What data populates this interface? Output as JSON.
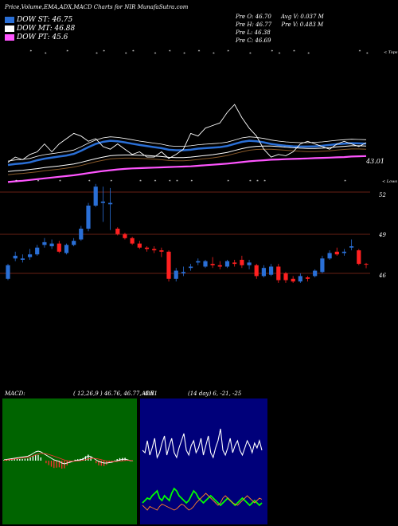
{
  "header": {
    "title": "Price,Volume,EMA,ADX,MACD Charts for NIR MunafaSutra.com"
  },
  "legend": [
    {
      "label": "DOW ST: 46.75",
      "color": "#2a6fd6"
    },
    {
      "label": "DOW MT: 46.88",
      "color": "#ffffff"
    },
    {
      "label": "DOW PT: 45.6",
      "color": "#ff55ff"
    }
  ],
  "ohlc": {
    "row1": [
      "Pre O: 46.70",
      "Avg V: 0.037 M"
    ],
    "row2": [
      "Pre H: 46.77",
      "Pre V: 0.483 M"
    ],
    "row3": [
      "Pre L: 46.38"
    ],
    "row4": [
      "Pre C: 46.69"
    ]
  },
  "panel_labels": {
    "tops": "< Tops",
    "lows": "< Lows",
    "ema_value": "43.01",
    "macd": "MACD:",
    "macd_params": "( 12,26,9 ) 46.76, 46.77, -0.01",
    "adx": "ADX",
    "adx_params": "(14 day) 6, -21, -25"
  },
  "colors": {
    "ema_short": "#2a6fd6",
    "ema_mid": "#ffffff",
    "ema_long": "#ff55ff",
    "up_candle": "#2a6fd6",
    "down_candle": "#ff2020",
    "hline": "#8b2a1a",
    "macd_bg": "#006400",
    "adx_bg": "#00007a"
  },
  "chart_data": {
    "type": "line",
    "price_levels": [
      "52",
      "49",
      "46"
    ],
    "ema_value_label": "43.01",
    "candles": [
      {
        "o": 45.6,
        "c": 46.6,
        "h": 46.7,
        "l": 45.5
      },
      {
        "o": 47.1,
        "c": 47.3,
        "h": 47.6,
        "l": 46.9
      },
      {
        "o": 47.0,
        "c": 47.1,
        "h": 47.4,
        "l": 46.8
      },
      {
        "o": 47.2,
        "c": 47.4,
        "h": 47.8,
        "l": 47.0
      },
      {
        "o": 47.4,
        "c": 47.9,
        "h": 48.1,
        "l": 47.3
      },
      {
        "o": 48.1,
        "c": 48.3,
        "h": 48.6,
        "l": 47.9
      },
      {
        "o": 48.0,
        "c": 48.2,
        "h": 48.5,
        "l": 47.8
      },
      {
        "o": 48.2,
        "c": 47.6,
        "h": 48.4,
        "l": 47.5
      },
      {
        "o": 47.5,
        "c": 48.1,
        "h": 48.2,
        "l": 47.4
      },
      {
        "o": 48.1,
        "c": 48.4,
        "h": 48.6,
        "l": 48.0
      },
      {
        "o": 48.5,
        "c": 49.3,
        "h": 49.5,
        "l": 48.4
      },
      {
        "o": 49.3,
        "c": 51.0,
        "h": 51.2,
        "l": 49.1
      },
      {
        "o": 51.0,
        "c": 52.4,
        "h": 52.6,
        "l": 50.9
      },
      {
        "o": 51.2,
        "c": 51.3,
        "h": 52.4,
        "l": 49.8
      },
      {
        "o": 51.1,
        "c": 51.2,
        "h": 52.3,
        "l": 49.2
      },
      {
        "o": 49.3,
        "c": 48.9,
        "h": 49.4,
        "l": 48.8
      },
      {
        "o": 48.9,
        "c": 48.6,
        "h": 49.0,
        "l": 48.5
      },
      {
        "o": 48.6,
        "c": 48.2,
        "h": 48.7,
        "l": 48.1
      },
      {
        "o": 48.2,
        "c": 47.9,
        "h": 48.4,
        "l": 47.8
      },
      {
        "o": 47.9,
        "c": 47.8,
        "h": 48.0,
        "l": 47.6
      },
      {
        "o": 47.8,
        "c": 47.7,
        "h": 48.0,
        "l": 47.5
      },
      {
        "o": 47.7,
        "c": 47.6,
        "h": 47.9,
        "l": 47.2
      },
      {
        "o": 47.6,
        "c": 45.6,
        "h": 47.7,
        "l": 45.4
      },
      {
        "o": 45.6,
        "c": 46.2,
        "h": 46.4,
        "l": 45.4
      },
      {
        "o": 46.0,
        "c": 46.1,
        "h": 46.5,
        "l": 45.8
      },
      {
        "o": 46.4,
        "c": 46.5,
        "h": 46.7,
        "l": 46.2
      },
      {
        "o": 46.8,
        "c": 46.9,
        "h": 47.1,
        "l": 46.6
      },
      {
        "o": 46.5,
        "c": 46.9,
        "h": 47.0,
        "l": 46.4
      },
      {
        "o": 46.7,
        "c": 46.6,
        "h": 47.2,
        "l": 46.4
      },
      {
        "o": 46.6,
        "c": 46.5,
        "h": 46.9,
        "l": 46.3
      },
      {
        "o": 46.5,
        "c": 46.9,
        "h": 47.0,
        "l": 46.4
      },
      {
        "o": 46.8,
        "c": 46.7,
        "h": 47.0,
        "l": 46.5
      },
      {
        "o": 47.0,
        "c": 46.6,
        "h": 47.3,
        "l": 46.4
      },
      {
        "o": 46.6,
        "c": 46.8,
        "h": 47.0,
        "l": 46.3
      },
      {
        "o": 46.6,
        "c": 45.8,
        "h": 46.7,
        "l": 45.6
      },
      {
        "o": 45.8,
        "c": 46.4,
        "h": 46.6,
        "l": 45.7
      },
      {
        "o": 45.9,
        "c": 46.5,
        "h": 46.7,
        "l": 45.8
      },
      {
        "o": 46.5,
        "c": 45.5,
        "h": 46.7,
        "l": 45.3
      },
      {
        "o": 46.0,
        "c": 45.5,
        "h": 46.1,
        "l": 45.3
      },
      {
        "o": 45.6,
        "c": 45.4,
        "h": 45.8,
        "l": 45.3
      },
      {
        "o": 45.4,
        "c": 45.8,
        "h": 46.0,
        "l": 45.3
      },
      {
        "o": 45.7,
        "c": 45.6,
        "h": 45.8,
        "l": 45.4
      },
      {
        "o": 45.8,
        "c": 46.2,
        "h": 46.3,
        "l": 45.7
      },
      {
        "o": 46.1,
        "c": 47.1,
        "h": 47.3,
        "l": 46.0
      },
      {
        "o": 47.1,
        "c": 47.5,
        "h": 47.7,
        "l": 47.0
      },
      {
        "o": 47.6,
        "c": 47.4,
        "h": 47.9,
        "l": 47.3
      },
      {
        "o": 47.5,
        "c": 47.6,
        "h": 47.8,
        "l": 47.3
      },
      {
        "o": 47.9,
        "c": 48.0,
        "h": 48.5,
        "l": 47.7
      },
      {
        "o": 47.7,
        "c": 46.7,
        "h": 47.8,
        "l": 46.6
      },
      {
        "o": 46.7,
        "c": 46.69,
        "h": 46.77,
        "l": 46.38
      }
    ],
    "ema_short": [
      30.0,
      30.4,
      30.6,
      31.0,
      31.8,
      32.4,
      32.8,
      33.2,
      33.6,
      34.2,
      35.4,
      36.8,
      38.0,
      38.8,
      39.2,
      39.0,
      38.6,
      38.1,
      37.6,
      37.2,
      36.8,
      36.4,
      35.8,
      35.6,
      35.6,
      35.8,
      36.2,
      36.4,
      36.6,
      36.8,
      37.2,
      38.0,
      38.8,
      39.2,
      39.0,
      38.6,
      38.0,
      37.6,
      37.3,
      37.1,
      37.0,
      37.0,
      37.1,
      37.3,
      37.6,
      37.9,
      38.1,
      38.3,
      38.2,
      38.1
    ],
    "ema_mid": [
      27.5,
      27.8,
      28.0,
      28.3,
      28.6,
      29.0,
      29.3,
      29.6,
      30.0,
      30.4,
      31.0,
      31.7,
      32.4,
      33.0,
      33.5,
      33.7,
      33.8,
      33.8,
      33.7,
      33.6,
      33.4,
      33.2,
      32.9,
      32.8,
      32.8,
      33.0,
      33.3,
      33.6,
      33.9,
      34.3,
      34.8,
      35.5,
      36.2,
      36.8,
      37.1,
      37.2,
      37.2,
      37.0,
      36.8,
      36.6,
      36.4,
      36.3,
      36.3,
      36.4,
      36.6,
      36.9,
      37.1,
      37.3,
      37.3,
      37.2
    ],
    "ema_long": [
      23.5,
      23.8,
      24.0,
      24.3,
      24.6,
      24.9,
      25.2,
      25.5,
      25.8,
      26.1,
      26.5,
      26.9,
      27.3,
      27.7,
      28.0,
      28.3,
      28.5,
      28.7,
      28.8,
      28.9,
      29.0,
      29.1,
      29.2,
      29.3,
      29.4,
      29.5,
      29.7,
      29.9,
      30.1,
      30.3,
      30.5,
      30.8,
      31.1,
      31.4,
      31.6,
      31.8,
      32.0,
      32.1,
      32.2,
      32.3,
      32.4,
      32.5,
      32.6,
      32.7,
      32.8,
      32.9,
      33.0,
      33.2,
      33.3,
      33.4
    ],
    "price_line": [
      31.0,
      33.0,
      32.0,
      34.0,
      35.0,
      38.0,
      35.0,
      38.0,
      40.0,
      42.0,
      41.0,
      39.0,
      40.0,
      37.0,
      36.0,
      38.0,
      36.0,
      34.0,
      35.0,
      33.0,
      33.0,
      35.0,
      32.5,
      34.0,
      36.0,
      42.0,
      41.0,
      44.0,
      45.0,
      46.0,
      50.0,
      53.0,
      48.0,
      44.0,
      41.0,
      36.0,
      33.0,
      34.0,
      33.5,
      35.0,
      38.0,
      39.0,
      38.0,
      37.0,
      36.0,
      38.0,
      39.0,
      38.0,
      37.0,
      38.5
    ],
    "macd": {
      "macd_line": [
        0.1,
        0.15,
        0.2,
        0.25,
        0.3,
        0.35,
        0.4,
        0.45,
        0.5,
        0.55,
        0.7,
        0.9,
        1.1,
        1.2,
        1.1,
        0.9,
        0.7,
        0.5,
        0.3,
        0.1,
        0.0,
        -0.1,
        -0.3,
        -0.4,
        -0.3,
        -0.2,
        -0.1,
        0.0,
        0.05,
        0.1,
        0.2,
        0.4,
        0.6,
        0.5,
        0.3,
        0.1,
        -0.1,
        -0.2,
        -0.3,
        -0.3,
        -0.25,
        -0.2,
        -0.1,
        0.0,
        0.1,
        0.15,
        0.2,
        0.1,
        0.0,
        -0.01
      ],
      "signal_line": [
        0.05,
        0.08,
        0.12,
        0.16,
        0.2,
        0.25,
        0.3,
        0.34,
        0.38,
        0.42,
        0.5,
        0.6,
        0.72,
        0.84,
        0.9,
        0.9,
        0.86,
        0.78,
        0.68,
        0.56,
        0.44,
        0.32,
        0.2,
        0.08,
        0.0,
        -0.05,
        -0.07,
        -0.06,
        -0.04,
        -0.01,
        0.04,
        0.12,
        0.22,
        0.28,
        0.3,
        0.26,
        0.2,
        0.12,
        0.04,
        -0.04,
        -0.1,
        -0.12,
        -0.12,
        -0.1,
        -0.06,
        -0.02,
        0.02,
        0.04,
        0.03,
        0.0
      ]
    },
    "adx": {
      "adx_line": [
        62,
        60,
        70,
        58,
        64,
        72,
        56,
        60,
        68,
        74,
        58,
        66,
        72,
        60,
        56,
        64,
        70,
        76,
        62,
        58,
        66,
        70,
        60,
        64,
        72,
        58,
        66,
        74,
        60,
        56,
        64,
        70,
        80,
        62,
        58,
        64,
        72,
        60,
        66,
        70,
        62,
        58,
        64,
        70,
        66,
        60,
        68,
        64,
        70,
        62
      ],
      "plus_di": [
        18,
        20,
        22,
        21,
        24,
        26,
        28,
        22,
        20,
        24,
        22,
        20,
        26,
        30,
        28,
        24,
        22,
        20,
        18,
        20,
        24,
        28,
        26,
        22,
        20,
        18,
        20,
        22,
        24,
        22,
        20,
        18,
        16,
        18,
        20,
        22,
        20,
        18,
        16,
        18,
        20,
        22,
        20,
        18,
        16,
        18,
        20,
        18,
        16,
        18
      ],
      "minus_di": [
        16,
        14,
        12,
        15,
        14,
        13,
        12,
        15,
        17,
        16,
        15,
        14,
        13,
        12,
        13,
        15,
        17,
        16,
        14,
        12,
        13,
        15,
        18,
        20,
        22,
        24,
        26,
        24,
        22,
        20,
        18,
        16,
        18,
        22,
        24,
        22,
        20,
        18,
        17,
        16,
        18,
        20,
        22,
        24,
        22,
        20,
        18,
        20,
        22,
        21
      ]
    }
  }
}
